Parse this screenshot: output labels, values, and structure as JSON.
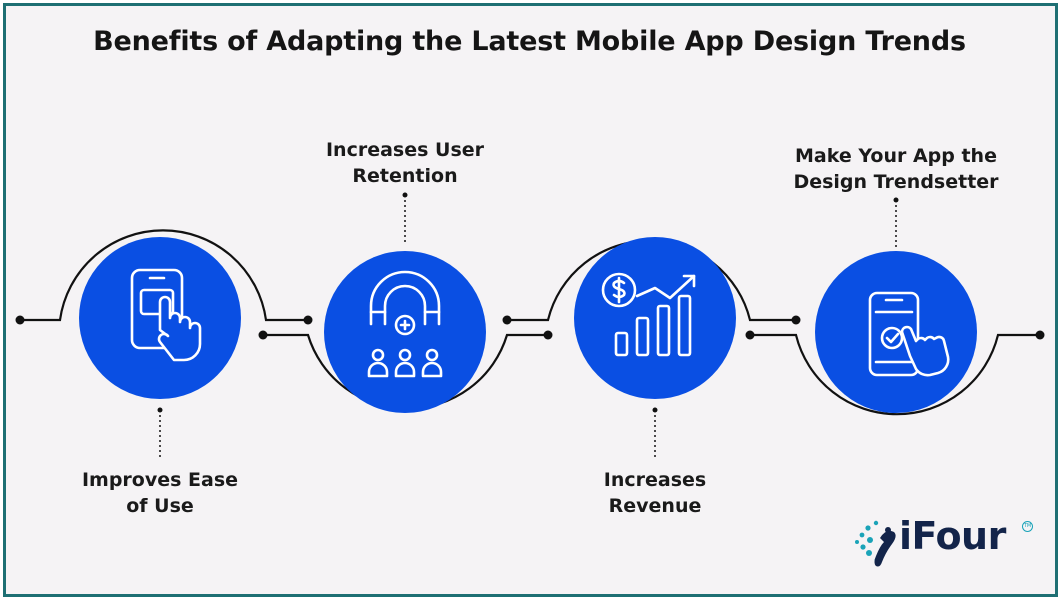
{
  "title": "Benefits of Adapting the Latest Mobile App Design Trends",
  "benefits": [
    {
      "label": "Improves Ease of Use",
      "icon": "tap-mobile-icon"
    },
    {
      "label": "Increases User Retention",
      "icon": "magnet-users-icon"
    },
    {
      "label": "Increases Revenue",
      "icon": "revenue-growth-icon"
    },
    {
      "label": "Make Your App the Design Trendsetter",
      "icon": "mobile-check-tap-icon"
    }
  ],
  "logo": {
    "text": "iFour",
    "tm": "TM"
  },
  "colors": {
    "accent": "#0a4fe3",
    "background": "#f5f3f5",
    "border": "#1e6f73",
    "line": "#111111",
    "brand_teal": "#1aa3b8"
  }
}
